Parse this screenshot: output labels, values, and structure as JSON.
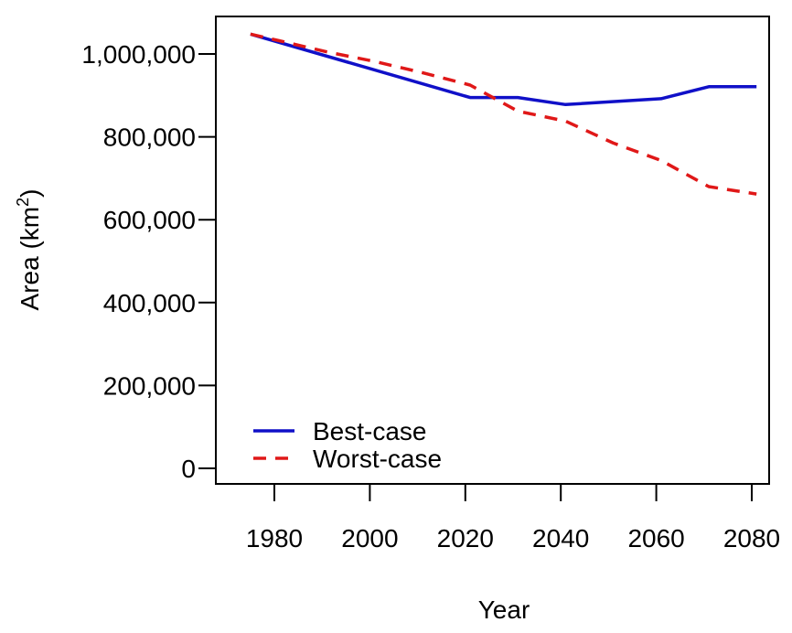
{
  "chart_data": {
    "type": "line",
    "title": "",
    "xlabel": "Year",
    "ylabel": "Area (km",
    "ylabel_superscript": "2",
    "ylabel_suffix": ")",
    "xlim": [
      1975,
      2081
    ],
    "ylim": [
      0,
      1050000
    ],
    "x_ticks": [
      1980,
      2000,
      2020,
      2040,
      2060,
      2080
    ],
    "x_tick_labels": [
      "1980",
      "2000",
      "2020",
      "2040",
      "2060",
      "2080"
    ],
    "y_ticks": [
      0,
      200000,
      400000,
      600000,
      800000,
      1000000
    ],
    "y_tick_labels": [
      "0",
      "200,000",
      "400,000",
      "600,000",
      "800,000",
      "1,000,000"
    ],
    "grid": false,
    "legend_position": "bottom-left",
    "series": [
      {
        "name": "Best-case",
        "color": "#1010c8",
        "dash": "solid",
        "x": [
          1975,
          2021,
          2031,
          2041,
          2061,
          2071,
          2081
        ],
        "y": [
          1048000,
          895000,
          895000,
          878000,
          892000,
          921000,
          921000
        ]
      },
      {
        "name": "Worst-case",
        "color": "#e01818",
        "dash": "dashed",
        "x": [
          1975,
          1981,
          1991,
          2001,
          2011,
          2021,
          2031,
          2041,
          2051,
          2061,
          2071,
          2081
        ],
        "y": [
          1048000,
          1032000,
          1005000,
          982000,
          955000,
          925000,
          862000,
          838000,
          785000,
          743000,
          680000,
          662000
        ]
      }
    ]
  }
}
